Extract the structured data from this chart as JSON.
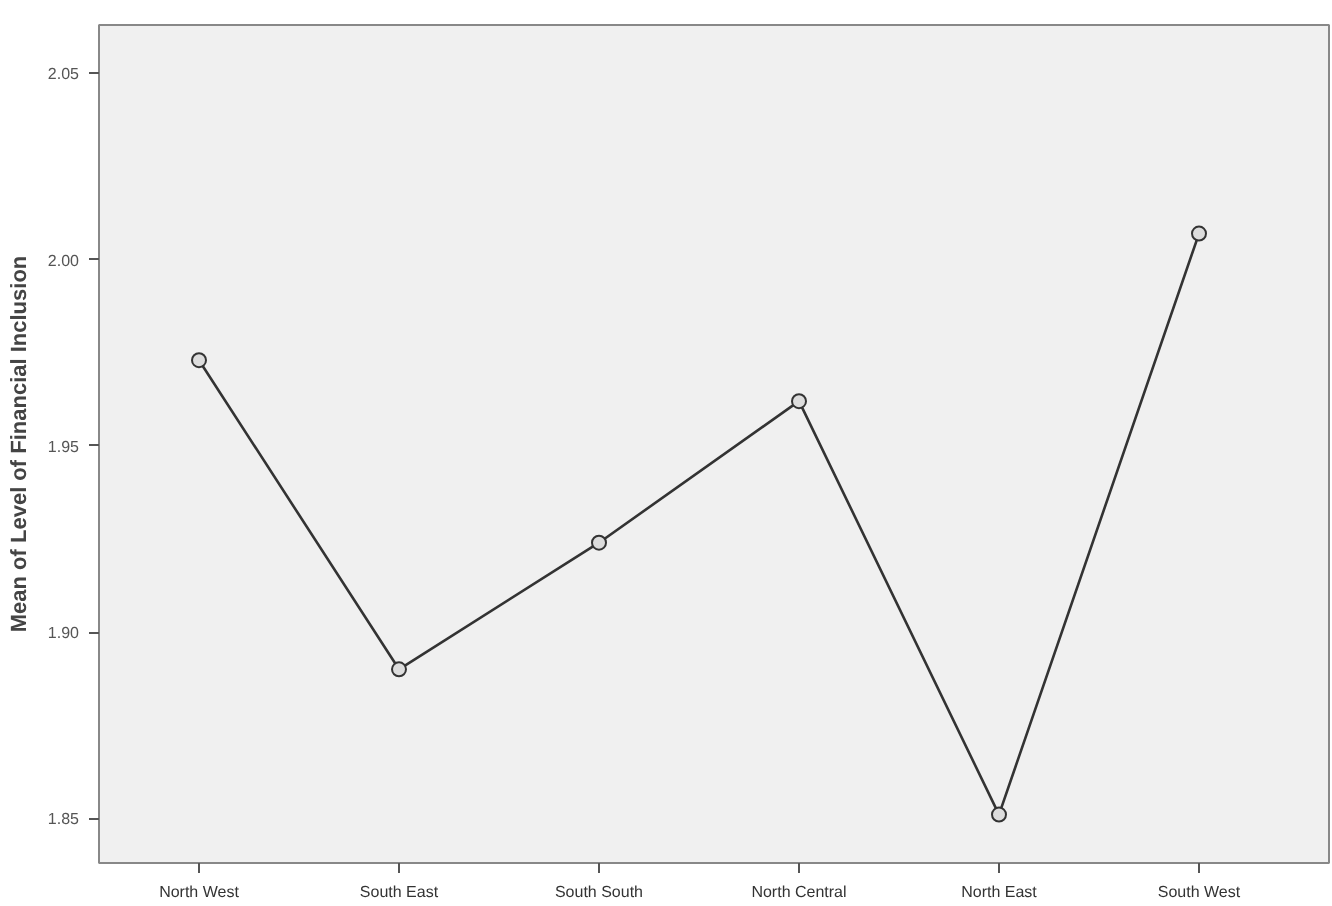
{
  "chart_data": {
    "type": "line",
    "ylabel": "Mean of Level of Financial Inclusion",
    "categories": [
      "North West",
      "South East",
      "South South",
      "North Central",
      "North East",
      "South West"
    ],
    "values": [
      1.973,
      1.89,
      1.924,
      1.962,
      1.851,
      2.007
    ],
    "color": "#333333",
    "marker": "circle",
    "line_style": "solid",
    "grid": false,
    "ylim": [
      1.838,
      2.063
    ],
    "yticks": [
      {
        "value": 1.85,
        "label": "1.85"
      },
      {
        "value": 1.9,
        "label": "1.90"
      },
      {
        "value": 1.95,
        "label": "1.95"
      },
      {
        "value": 2.0,
        "label": "2.00"
      },
      {
        "value": 2.05,
        "label": "2.05"
      }
    ]
  }
}
